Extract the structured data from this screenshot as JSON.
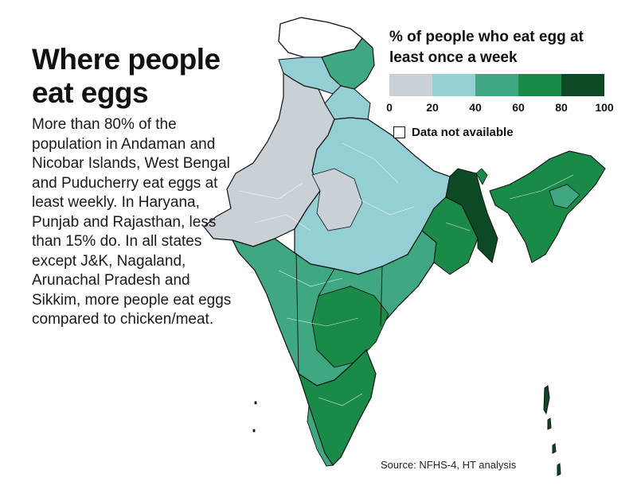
{
  "headline": "Where people eat eggs",
  "description": "More than 80% of the population in Andaman and Nicobar Islands, West Bengal and Puducherry eat eggs at least weekly. In Haryana, Punjab and Rajasthan, less than 15% do. In all states except J&K, Nagaland, Arunachal Pradesh and Sikkim, more people eat eggs compared to chicken/meat.",
  "legend": {
    "title": "% of people who eat egg at least once a week",
    "bins": [
      {
        "from": 0,
        "to": 20,
        "color": "#c9d1d6"
      },
      {
        "from": 20,
        "to": 40,
        "color": "#93cfd4"
      },
      {
        "from": 40,
        "to": 60,
        "color": "#3fa881"
      },
      {
        "from": 60,
        "to": 80,
        "color": "#198a47"
      },
      {
        "from": 80,
        "to": 100,
        "color": "#0b4a24"
      }
    ],
    "ticks": [
      "0",
      "20",
      "40",
      "60",
      "80",
      "100"
    ],
    "not_available_label": "Data not available"
  },
  "source": "Source: NFHS-4, HT analysis"
}
